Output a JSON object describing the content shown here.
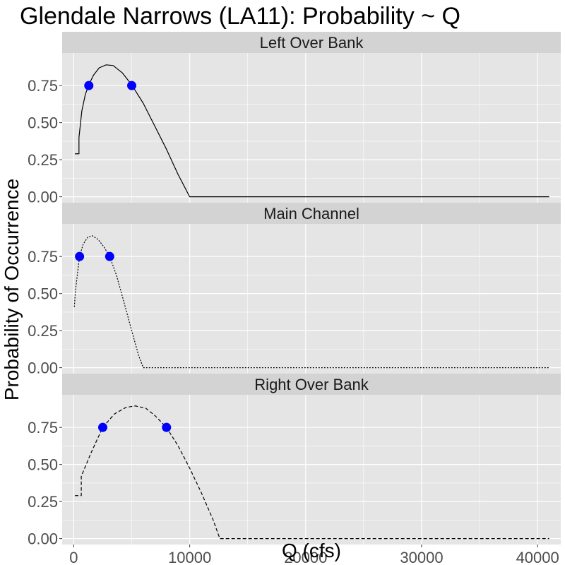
{
  "chart_data": {
    "type": "line",
    "title": "Glendale Narrows (LA11): Probability ~ Q",
    "xlabel": "Q (cfs)",
    "ylabel": "Probability of Occurrence",
    "xlim": [
      -1000,
      42000
    ],
    "ylim": [
      -0.04,
      0.97
    ],
    "x_ticks": [
      0,
      10000,
      20000,
      30000,
      40000
    ],
    "x_tick_labels": [
      "0",
      "10000",
      "20000",
      "30000",
      "40000"
    ],
    "y_ticks": [
      0,
      0.25,
      0.5,
      0.75
    ],
    "y_tick_labels": [
      "0.00",
      "0.25",
      "0.50",
      "0.75"
    ],
    "grid": true,
    "colors": {
      "panel_background": "#e5e5e5",
      "strip_background": "#d3d3d3",
      "grid_line": "#ffffff",
      "curve": "#000000",
      "point": "#0000ff"
    },
    "panels": [
      {
        "label": "Left Over Bank",
        "line_style": "solid",
        "series": [
          {
            "x": 100,
            "y": 0.29
          },
          {
            "x": 450,
            "y": 0.29
          },
          {
            "x": 450,
            "y": 0.4
          },
          {
            "x": 700,
            "y": 0.58
          },
          {
            "x": 1000,
            "y": 0.69
          },
          {
            "x": 1300,
            "y": 0.755
          },
          {
            "x": 1700,
            "y": 0.82
          },
          {
            "x": 2200,
            "y": 0.87
          },
          {
            "x": 2800,
            "y": 0.89
          },
          {
            "x": 3400,
            "y": 0.885
          },
          {
            "x": 4200,
            "y": 0.835
          },
          {
            "x": 5000,
            "y": 0.755
          },
          {
            "x": 6000,
            "y": 0.63
          },
          {
            "x": 7000,
            "y": 0.475
          },
          {
            "x": 8000,
            "y": 0.32
          },
          {
            "x": 9000,
            "y": 0.15
          },
          {
            "x": 10000,
            "y": 0
          },
          {
            "x": 41000,
            "y": 0
          }
        ],
        "points": [
          {
            "x": 1300,
            "y": 0.75
          },
          {
            "x": 5000,
            "y": 0.75
          }
        ]
      },
      {
        "label": "Main Channel",
        "line_style": "dotted",
        "series": [
          {
            "x": 50,
            "y": 0.41
          },
          {
            "x": 150,
            "y": 0.52
          },
          {
            "x": 300,
            "y": 0.62
          },
          {
            "x": 500,
            "y": 0.75
          },
          {
            "x": 800,
            "y": 0.83
          },
          {
            "x": 1200,
            "y": 0.88
          },
          {
            "x": 1600,
            "y": 0.89
          },
          {
            "x": 2100,
            "y": 0.865
          },
          {
            "x": 2600,
            "y": 0.815
          },
          {
            "x": 3100,
            "y": 0.75
          },
          {
            "x": 3700,
            "y": 0.62
          },
          {
            "x": 4300,
            "y": 0.45
          },
          {
            "x": 5000,
            "y": 0.25
          },
          {
            "x": 5600,
            "y": 0.08
          },
          {
            "x": 6000,
            "y": 0
          },
          {
            "x": 41000,
            "y": 0
          }
        ],
        "points": [
          {
            "x": 500,
            "y": 0.75
          },
          {
            "x": 3100,
            "y": 0.75
          }
        ]
      },
      {
        "label": "Right Over Bank",
        "line_style": "dashed",
        "series": [
          {
            "x": 100,
            "y": 0.29
          },
          {
            "x": 650,
            "y": 0.29
          },
          {
            "x": 650,
            "y": 0.42
          },
          {
            "x": 1500,
            "y": 0.58
          },
          {
            "x": 2500,
            "y": 0.75
          },
          {
            "x": 3500,
            "y": 0.84
          },
          {
            "x": 4500,
            "y": 0.885
          },
          {
            "x": 5300,
            "y": 0.895
          },
          {
            "x": 6200,
            "y": 0.88
          },
          {
            "x": 7000,
            "y": 0.83
          },
          {
            "x": 8000,
            "y": 0.75
          },
          {
            "x": 9000,
            "y": 0.625
          },
          {
            "x": 10000,
            "y": 0.475
          },
          {
            "x": 11000,
            "y": 0.31
          },
          {
            "x": 12000,
            "y": 0.13
          },
          {
            "x": 12600,
            "y": 0
          },
          {
            "x": 41000,
            "y": 0
          }
        ],
        "points": [
          {
            "x": 2500,
            "y": 0.75
          },
          {
            "x": 8000,
            "y": 0.75
          }
        ]
      }
    ]
  }
}
